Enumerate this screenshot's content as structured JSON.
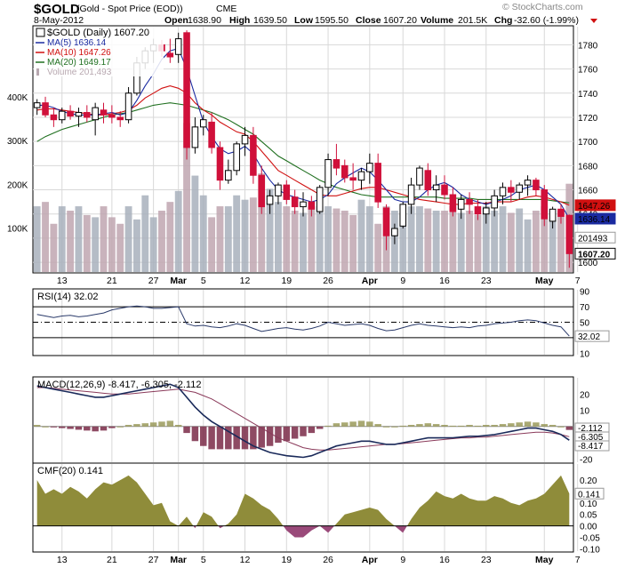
{
  "header": {
    "symbol": "$GOLD",
    "description": "(Gold - Spot Price (EOD))",
    "exchange": "CME",
    "date": "8-May-2012",
    "open_label": "Open",
    "open": "1638.90",
    "high_label": "High",
    "high": "1639.50",
    "low_label": "Low",
    "low": "1595.50",
    "close_label": "Close",
    "close": "1607.20",
    "volume_label": "Volume",
    "volume": "201.5K",
    "chg_label": "Chg",
    "chg": "-32.60 (-1.99%)",
    "watermark": "© StockCharts.com"
  },
  "colors": {
    "up": "#000000",
    "down": "#d0103a",
    "ma5": "#1a2aa0",
    "ma10": "#d01010",
    "ma20": "#207020",
    "volume": "#b8a8b0",
    "cmf_fill": "#8f8c3a",
    "macd_hist_neg": "#7a2a48",
    "macd_hist_pos": "#9a9a5a"
  },
  "chart_data": [
    {
      "type": "candlestick",
      "panel": "price",
      "legend": [
        {
          "label": "$GOLD (Daily) 1607.20",
          "color": "#000000"
        },
        {
          "label": "MA(5) 1636.14",
          "color": "#1a2aa0"
        },
        {
          "label": "MA(10) 1647.26",
          "color": "#d01010"
        },
        {
          "label": "MA(20) 1649.17",
          "color": "#207020"
        },
        {
          "label": "Volume 201,493",
          "color": "#b8a8b0"
        }
      ],
      "x_tick_labels": [
        {
          "i": 3,
          "label": "13"
        },
        {
          "i": 9,
          "label": "21"
        },
        {
          "i": 14,
          "label": "27"
        },
        {
          "i": 17,
          "label": "Mar",
          "bold": true
        },
        {
          "i": 20,
          "label": "5"
        },
        {
          "i": 25,
          "label": "12"
        },
        {
          "i": 30,
          "label": "19"
        },
        {
          "i": 35,
          "label": "26"
        },
        {
          "i": 40,
          "label": "Apr",
          "bold": true
        },
        {
          "i": 44,
          "label": "9"
        },
        {
          "i": 49,
          "label": "16"
        },
        {
          "i": 54,
          "label": "23"
        },
        {
          "i": 61,
          "label": "May",
          "bold": true
        },
        {
          "i": 65,
          "label": "7"
        }
      ],
      "ylim": [
        1592,
        1795
      ],
      "y_ticks": [
        1600,
        1620,
        1640,
        1660,
        1680,
        1700,
        1720,
        1740,
        1760,
        1780
      ],
      "volume_ticks": [
        {
          "v": 100000,
          "label": "100K"
        },
        {
          "v": 200000,
          "label": "200K"
        },
        {
          "v": 300000,
          "label": "300K"
        },
        {
          "v": 400000,
          "label": "400K"
        }
      ],
      "volume_max": 560000,
      "price_tags": [
        {
          "v": 1647.26,
          "label": "1647.26",
          "color": "#d01010"
        },
        {
          "v": 1636.14,
          "label": "1636.14",
          "color": "#1a2aa0"
        },
        {
          "v": 1620.5,
          "label": "201493",
          "color": "#ffffff",
          "border": "#999999"
        },
        {
          "v": 1607.2,
          "label": "1607.20",
          "color": "#ffffff",
          "border": "#000000",
          "bold": true
        }
      ],
      "candles": [
        [
          1728,
          1735,
          1722,
          1732
        ],
        [
          1732,
          1737,
          1720,
          1722
        ],
        [
          1722,
          1728,
          1712,
          1718
        ],
        [
          1718,
          1728,
          1715,
          1725
        ],
        [
          1725,
          1730,
          1718,
          1721
        ],
        [
          1721,
          1728,
          1712,
          1724
        ],
        [
          1724,
          1730,
          1716,
          1720
        ],
        [
          1718,
          1732,
          1705,
          1728
        ],
        [
          1726,
          1732,
          1715,
          1722
        ],
        [
          1722,
          1730,
          1715,
          1720
        ],
        [
          1720,
          1725,
          1712,
          1718
        ],
        [
          1718,
          1745,
          1715,
          1740
        ],
        [
          1740,
          1770,
          1738,
          1765
        ],
        [
          1765,
          1778,
          1760,
          1775
        ],
        [
          1775,
          1785,
          1765,
          1780
        ],
        [
          1780,
          1784,
          1770,
          1775
        ],
        [
          1773,
          1785,
          1765,
          1770
        ],
        [
          1772,
          1790,
          1765,
          1785
        ],
        [
          1790,
          1792,
          1685,
          1695
        ],
        [
          1695,
          1720,
          1690,
          1712
        ],
        [
          1712,
          1722,
          1705,
          1718
        ],
        [
          1716,
          1724,
          1690,
          1695
        ],
        [
          1695,
          1700,
          1660,
          1668
        ],
        [
          1668,
          1685,
          1665,
          1676
        ],
        [
          1676,
          1700,
          1672,
          1698
        ],
        [
          1698,
          1712,
          1688,
          1705
        ],
        [
          1705,
          1712,
          1665,
          1672
        ],
        [
          1672,
          1680,
          1640,
          1646
        ],
        [
          1648,
          1660,
          1640,
          1655
        ],
        [
          1655,
          1666,
          1648,
          1664
        ],
        [
          1664,
          1668,
          1648,
          1652
        ],
        [
          1654,
          1660,
          1640,
          1646
        ],
        [
          1646,
          1658,
          1638,
          1650
        ],
        [
          1650,
          1655,
          1638,
          1644
        ],
        [
          1642,
          1664,
          1640,
          1662
        ],
        [
          1662,
          1690,
          1655,
          1685
        ],
        [
          1685,
          1698,
          1672,
          1678
        ],
        [
          1680,
          1685,
          1666,
          1670
        ],
        [
          1670,
          1682,
          1660,
          1668
        ],
        [
          1668,
          1678,
          1660,
          1675
        ],
        [
          1675,
          1690,
          1665,
          1682
        ],
        [
          1682,
          1690,
          1645,
          1650
        ],
        [
          1645,
          1648,
          1610,
          1622
        ],
        [
          1622,
          1632,
          1615,
          1628
        ],
        [
          1630,
          1650,
          1628,
          1648
        ],
        [
          1648,
          1670,
          1640,
          1664
        ],
        [
          1664,
          1680,
          1660,
          1678
        ],
        [
          1676,
          1682,
          1655,
          1660
        ],
        [
          1660,
          1672,
          1650,
          1664
        ],
        [
          1664,
          1672,
          1652,
          1656
        ],
        [
          1656,
          1662,
          1638,
          1642
        ],
        [
          1644,
          1656,
          1636,
          1652
        ],
        [
          1652,
          1658,
          1640,
          1648
        ],
        [
          1646,
          1652,
          1635,
          1640
        ],
        [
          1640,
          1650,
          1632,
          1645
        ],
        [
          1645,
          1660,
          1638,
          1655
        ],
        [
          1655,
          1666,
          1648,
          1662
        ],
        [
          1662,
          1668,
          1650,
          1658
        ],
        [
          1658,
          1666,
          1652,
          1664
        ],
        [
          1664,
          1672,
          1655,
          1668
        ],
        [
          1668,
          1670,
          1655,
          1660
        ],
        [
          1660,
          1664,
          1630,
          1636
        ],
        [
          1634,
          1646,
          1628,
          1644
        ],
        [
          1644,
          1648,
          1632,
          1638
        ],
        [
          1638.9,
          1639.5,
          1595.5,
          1607.2
        ]
      ],
      "ma5": [
        1730,
        1730,
        1728,
        1725,
        1723,
        1722,
        1722,
        1722,
        1723,
        1724,
        1722,
        1724,
        1734,
        1746,
        1756,
        1768,
        1775,
        1777,
        1760,
        1738,
        1716,
        1704,
        1694,
        1690,
        1692,
        1696,
        1690,
        1678,
        1668,
        1660,
        1656,
        1654,
        1652,
        1650,
        1652,
        1656,
        1665,
        1670,
        1674,
        1678,
        1675,
        1668,
        1660,
        1652,
        1650,
        1650,
        1654,
        1660,
        1664,
        1666,
        1662,
        1656,
        1652,
        1650,
        1648,
        1650,
        1652,
        1655,
        1660,
        1662,
        1664,
        1660,
        1654,
        1648,
        1636.14
      ],
      "ma10": [
        1726,
        1727,
        1727,
        1726,
        1725,
        1724,
        1723,
        1722,
        1722,
        1723,
        1724,
        1726,
        1730,
        1736,
        1740,
        1744,
        1746,
        1744,
        1740,
        1732,
        1726,
        1722,
        1716,
        1712,
        1708,
        1706,
        1700,
        1692,
        1684,
        1676,
        1672,
        1668,
        1664,
        1660,
        1656,
        1655,
        1655,
        1657,
        1659,
        1661,
        1662,
        1662,
        1660,
        1658,
        1656,
        1654,
        1652,
        1651,
        1650,
        1649,
        1648,
        1648,
        1649,
        1649,
        1649,
        1650,
        1650,
        1650,
        1652,
        1654,
        1655,
        1654,
        1652,
        1650,
        1647.26
      ],
      "ma20": [
        1700,
        1704,
        1707,
        1710,
        1712,
        1714,
        1716,
        1718,
        1720,
        1722,
        1723,
        1724,
        1726,
        1728,
        1730,
        1731,
        1732,
        1731,
        1730,
        1728,
        1726,
        1724,
        1721,
        1718,
        1714,
        1710,
        1706,
        1700,
        1694,
        1688,
        1684,
        1680,
        1676,
        1672,
        1668,
        1665,
        1662,
        1660,
        1658,
        1656,
        1655,
        1654,
        1654,
        1654,
        1654,
        1654,
        1654,
        1654,
        1654,
        1653,
        1653,
        1653,
        1653,
        1652,
        1652,
        1652,
        1652,
        1652,
        1652,
        1652,
        1652,
        1652,
        1651,
        1650,
        1649.17
      ],
      "volume": [
        150000,
        160000,
        110000,
        150000,
        140000,
        150000,
        130000,
        125000,
        150000,
        125000,
        110000,
        150000,
        120000,
        175000,
        125000,
        140000,
        160000,
        185000,
        340000,
        220000,
        175000,
        125000,
        150000,
        150000,
        175000,
        165000,
        170000,
        225000,
        190000,
        160000,
        150000,
        140000,
        135000,
        150000,
        150000,
        150000,
        145000,
        140000,
        130000,
        165000,
        150000,
        110000,
        150000,
        140000,
        135000,
        150000,
        150000,
        145000,
        140000,
        140000,
        150000,
        135000,
        140000,
        130000,
        150000,
        140000,
        150000,
        135000,
        145000,
        120000,
        140000,
        150000,
        120000,
        140000,
        201493
      ]
    },
    {
      "type": "line",
      "panel": "rsi",
      "title": "RSI(14) 32.02",
      "ylim": [
        8,
        92
      ],
      "y_ticks": [
        10,
        30,
        50,
        70,
        90
      ],
      "bands": [
        30,
        70
      ],
      "midline": 50,
      "last_label": "32.02",
      "values": [
        60,
        58,
        56,
        58,
        59,
        57,
        58,
        60,
        62,
        66,
        68,
        70,
        71,
        70,
        68,
        68,
        69,
        70,
        48,
        45,
        46,
        44,
        43,
        45,
        48,
        46,
        42,
        38,
        40,
        42,
        43,
        41,
        40,
        42,
        45,
        50,
        48,
        46,
        47,
        48,
        46,
        42,
        39,
        40,
        43,
        46,
        48,
        46,
        45,
        44,
        43,
        44,
        43,
        45,
        46,
        48,
        49,
        50,
        52,
        53,
        52,
        49,
        46,
        44,
        32.02
      ]
    },
    {
      "type": "line+bar",
      "panel": "macd",
      "title": "MACD(12,26,9) -8.417, -6.305, -2.112",
      "ylim": [
        -22,
        30
      ],
      "y_ticks": [
        -20,
        -10,
        0,
        10,
        20
      ],
      "last_labels": [
        {
          "v": -2.112,
          "label": "-2.112"
        },
        {
          "v": -6.305,
          "label": "-6.305"
        },
        {
          "v": -8.417,
          "label": "-8.417"
        }
      ],
      "macd": [
        25,
        24,
        23,
        22,
        21,
        20,
        19,
        18,
        18,
        19,
        20,
        21,
        22,
        23,
        24,
        25,
        26,
        24,
        18,
        12,
        7,
        3,
        0,
        -3,
        -6,
        -9,
        -12,
        -14,
        -16,
        -17,
        -18,
        -18.5,
        -19,
        -18,
        -16,
        -14,
        -12,
        -11,
        -10,
        -9,
        -9,
        -10,
        -11,
        -11,
        -10,
        -9,
        -8,
        -7,
        -7,
        -7,
        -7,
        -6.5,
        -6,
        -6,
        -5.5,
        -5,
        -4,
        -3,
        -2,
        -1,
        -1,
        -2,
        -3,
        -5,
        -8.417
      ],
      "signal": [
        24,
        24,
        23.5,
        23,
        22.5,
        22,
        21.5,
        21,
        20.5,
        20,
        20,
        20,
        20.5,
        21,
        21.5,
        22,
        22.5,
        23,
        22,
        21,
        19,
        17,
        14,
        11,
        8,
        5,
        2,
        -1,
        -4,
        -7,
        -9,
        -11,
        -13,
        -14,
        -14.5,
        -14.5,
        -14,
        -13.5,
        -13,
        -12.5,
        -12,
        -11.5,
        -11,
        -11,
        -10.5,
        -10,
        -9.5,
        -9,
        -8.5,
        -8,
        -7.5,
        -7,
        -7,
        -6.5,
        -6.5,
        -6,
        -5.5,
        -5,
        -4.5,
        -4,
        -3.5,
        -3.5,
        -4,
        -5,
        -6.305
      ],
      "histogram": [
        1,
        0,
        -0.5,
        -1,
        -1.5,
        -2,
        -2.5,
        -3,
        -2.5,
        -1,
        0,
        1,
        1.5,
        2,
        2.5,
        3,
        3.5,
        1,
        -4,
        -9,
        -12,
        -14,
        -14,
        -14,
        -14,
        -14,
        -14,
        -13,
        -12,
        -10,
        -9,
        -7.5,
        -6,
        -4,
        -1.5,
        0.5,
        2,
        2.5,
        3,
        3.5,
        3,
        1.5,
        0,
        0,
        0.5,
        1,
        1.5,
        2,
        1.5,
        1,
        0.5,
        0.5,
        1,
        0.5,
        1,
        1,
        1.5,
        2,
        2.5,
        3,
        2.5,
        1.5,
        1,
        0,
        -2.112
      ]
    },
    {
      "type": "area",
      "panel": "cmf",
      "title": "CMF(20) 0.141",
      "ylim": [
        -0.11,
        0.27
      ],
      "y_ticks": [
        -0.1,
        -0.05,
        0.0,
        0.05,
        0.1,
        0.15,
        0.2
      ],
      "last_label": "0.141",
      "values": [
        0.2,
        0.14,
        0.16,
        0.14,
        0.17,
        0.15,
        0.12,
        0.16,
        0.19,
        0.18,
        0.2,
        0.22,
        0.19,
        0.14,
        0.09,
        0.1,
        0.02,
        0.0,
        0.04,
        -0.01,
        0.06,
        0.04,
        -0.01,
        0.01,
        0.05,
        0.14,
        0.12,
        0.09,
        0.07,
        0.03,
        -0.02,
        -0.05,
        -0.05,
        -0.02,
        0.0,
        -0.03,
        0.01,
        0.05,
        0.06,
        0.07,
        0.08,
        0.07,
        0.03,
        0.0,
        -0.03,
        0.03,
        0.08,
        0.11,
        0.15,
        0.13,
        0.12,
        0.14,
        0.12,
        0.11,
        0.11,
        0.13,
        0.12,
        0.1,
        0.09,
        0.11,
        0.12,
        0.14,
        0.18,
        0.22,
        0.141
      ]
    }
  ]
}
